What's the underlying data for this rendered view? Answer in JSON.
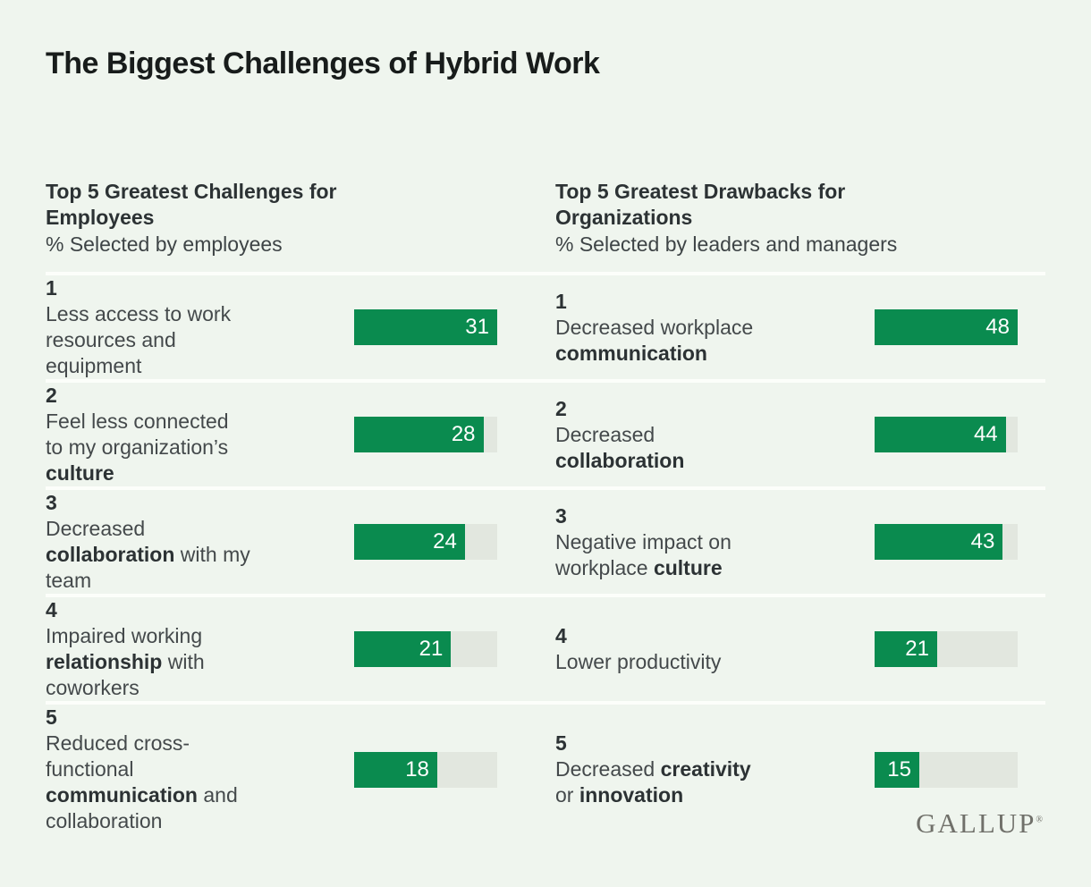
{
  "title": "The Biggest Challenges of Hybrid Work",
  "logo": {
    "text": "GALLUP",
    "mark": "®"
  },
  "colors": {
    "background": "#eff5ee",
    "bar_green": "#0a8b4f",
    "bar_track": "#e2e7df",
    "separator": "#fcfefa",
    "title_text": "#181c1b",
    "body_text": "#44494b",
    "bold_text": "#2c3234",
    "logo_gray": "#70706a"
  },
  "columns": [
    {
      "heading": "Top 5 Greatest Challenges for\nEmployees",
      "subheading": "% Selected by employees",
      "track_max": 31,
      "items": [
        {
          "rank": "1",
          "value": 31,
          "segments": [
            {
              "t": " Less access to work\nresources and\nequipment",
              "b": false
            }
          ]
        },
        {
          "rank": "2",
          "value": 28,
          "segments": [
            {
              "t": " Feel less connected\nto my organization’s\n",
              "b": false
            },
            {
              "t": "culture",
              "b": true
            }
          ]
        },
        {
          "rank": "3",
          "value": 24,
          "segments": [
            {
              "t": " Decreased\n",
              "b": false
            },
            {
              "t": "collaboration",
              "b": true
            },
            {
              "t": " with my\nteam",
              "b": false
            }
          ]
        },
        {
          "rank": "4",
          "value": 21,
          "segments": [
            {
              "t": " Impaired working\n",
              "b": false
            },
            {
              "t": "relationship",
              "b": true
            },
            {
              "t": " with\ncoworkers",
              "b": false
            }
          ]
        },
        {
          "rank": "5",
          "value": 18,
          "segments": [
            {
              "t": " Reduced cross-\nfunctional\n",
              "b": false
            },
            {
              "t": "communication",
              "b": true
            },
            {
              "t": " and\ncollaboration",
              "b": false
            }
          ]
        }
      ]
    },
    {
      "heading": "Top 5 Greatest Drawbacks for\nOrganizations",
      "subheading": "% Selected by leaders and managers",
      "track_max": 48,
      "items": [
        {
          "rank": "1",
          "value": 48,
          "segments": [
            {
              "t": " Decreased workplace\n",
              "b": false
            },
            {
              "t": "communication",
              "b": true
            }
          ]
        },
        {
          "rank": "2",
          "value": 44,
          "segments": [
            {
              "t": " Decreased\n",
              "b": false
            },
            {
              "t": "collaboration",
              "b": true
            }
          ]
        },
        {
          "rank": "3",
          "value": 43,
          "segments": [
            {
              "t": " Negative impact on\nworkplace ",
              "b": false
            },
            {
              "t": "culture",
              "b": true
            }
          ]
        },
        {
          "rank": "4",
          "value": 21,
          "segments": [
            {
              "t": " Lower productivity",
              "b": false
            }
          ]
        },
        {
          "rank": "5",
          "value": 15,
          "segments": [
            {
              "t": " Decreased ",
              "b": false
            },
            {
              "t": "creativity",
              "b": true
            },
            {
              "t": "\nor ",
              "b": false
            },
            {
              "t": "innovation",
              "b": true
            }
          ]
        }
      ]
    }
  ],
  "chart_data": [
    {
      "type": "bar",
      "orientation": "horizontal",
      "title": "Top 5 Greatest Challenges for Employees",
      "subtitle": "% Selected by employees",
      "categories": [
        "1 Less access to work resources and equipment",
        "2 Feel less connected to my organization’s culture",
        "3 Decreased collaboration with my team",
        "4 Impaired working relationship with coworkers",
        "5 Reduced cross-functional communication and collaboration"
      ],
      "values": [
        31,
        28,
        24,
        21,
        18
      ],
      "xlim": [
        0,
        31
      ],
      "data_labels": "inside-end",
      "grid": false,
      "legend": false
    },
    {
      "type": "bar",
      "orientation": "horizontal",
      "title": "Top 5 Greatest Drawbacks for Organizations",
      "subtitle": "% Selected by leaders and managers",
      "categories": [
        "1 Decreased workplace communication",
        "2 Decreased collaboration",
        "3 Negative impact on workplace culture",
        "4 Lower productivity",
        "5 Decreased creativity or innovation"
      ],
      "values": [
        48,
        44,
        43,
        21,
        15
      ],
      "xlim": [
        0,
        48
      ],
      "data_labels": "inside-end",
      "grid": false,
      "legend": false
    }
  ]
}
